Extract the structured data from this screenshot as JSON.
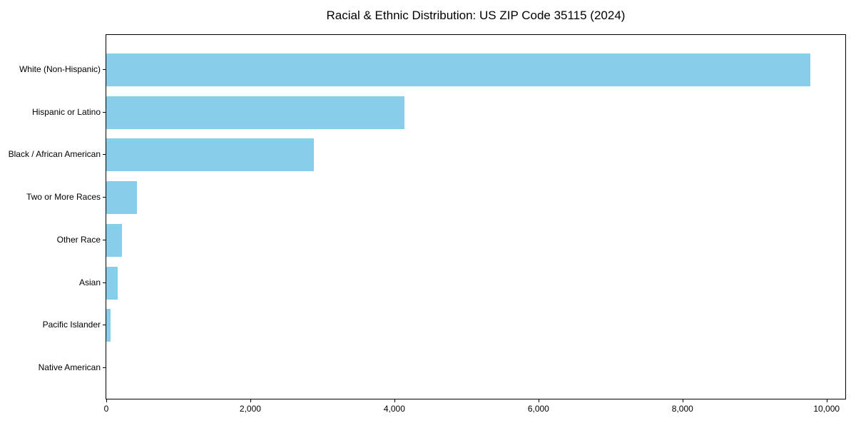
{
  "chart_data": {
    "type": "bar",
    "orientation": "horizontal",
    "title": "Racial & Ethnic Distribution: US ZIP Code 35115 (2024)",
    "xlabel": "",
    "ylabel": "",
    "categories": [
      "White (Non-Hispanic)",
      "Hispanic or Latino",
      "Black / African American",
      "Two or More Races",
      "Other Race",
      "Asian",
      "Pacific Islander",
      "Native American"
    ],
    "values": [
      9770,
      4140,
      2880,
      425,
      215,
      160,
      60,
      0
    ],
    "xlim": [
      0,
      10260
    ],
    "xticks": [
      0,
      2000,
      4000,
      6000,
      8000,
      10000
    ],
    "xtick_labels": [
      "0",
      "2,000",
      "4,000",
      "6,000",
      "8,000",
      "10,000"
    ],
    "bar_color": "#87CEEB",
    "axis_color": "#000000",
    "grid": false,
    "legend": null
  }
}
